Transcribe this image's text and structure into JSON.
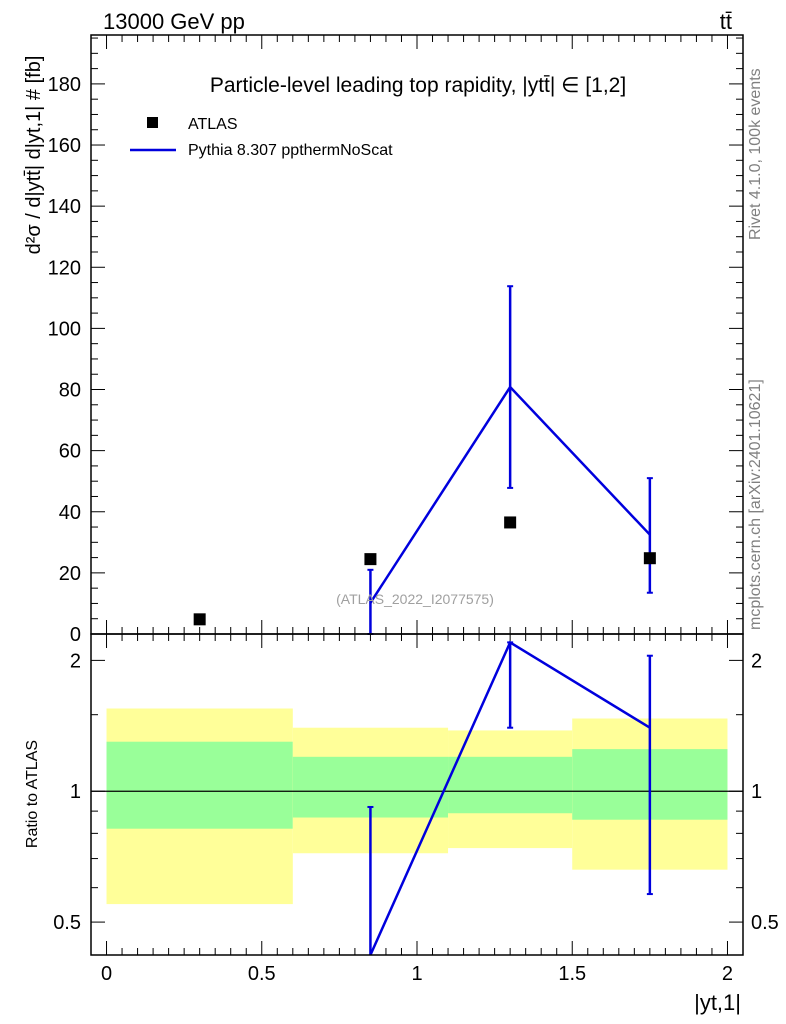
{
  "header": {
    "energy_label": "13000 GeV pp",
    "process_label": "tt̄"
  },
  "side_text": {
    "rivet": "Rivet 4.1.0,  100k events",
    "mcplots": "mcplots.cern.ch [arXiv:2401.10621]"
  },
  "watermark": "(ATLAS_2022_I2077575)",
  "colors": {
    "mc": "#0000dd",
    "band_outer": "#ffff99",
    "band_inner": "#99ff99",
    "data": "#000000"
  },
  "chart_data": [
    {
      "type": "scatter",
      "panel": "main",
      "title": "Particle-level leading top rapidity, |ytt̄| ∈ [1,2]",
      "xlabel": "|yt,1|",
      "ylabel": "d²σ / d|ytt̄| d|yt,1| # [fb]",
      "xlim": [
        -0.05,
        2.05
      ],
      "ylim": [
        0,
        196
      ],
      "yticks": [
        0,
        20,
        40,
        60,
        80,
        100,
        120,
        140,
        160,
        180
      ],
      "legend": {
        "placement": "top-left",
        "entries": [
          "ATLAS",
          "Pythia 8.307 ppthermNoScat"
        ]
      },
      "series": [
        {
          "name": "ATLAS",
          "style": "markers",
          "x": [
            0.3,
            0.85,
            1.3,
            1.75
          ],
          "y": [
            4.8,
            24.5,
            36.5,
            24.8
          ],
          "xbins": [
            [
              0,
              0.6
            ],
            [
              0.6,
              1.1
            ],
            [
              1.1,
              1.5
            ],
            [
              1.5,
              2.0
            ]
          ]
        },
        {
          "name": "Pythia 8.307 ppthermNoScat",
          "style": "line",
          "x": [
            0.85,
            1.3,
            1.75
          ],
          "y": [
            10.2,
            80.8,
            32.5
          ],
          "yerr": [
            [
              10.2,
              10.8
            ],
            [
              33.0,
              33.0
            ],
            [
              19.0,
              18.5
            ]
          ]
        }
      ]
    },
    {
      "type": "line",
      "panel": "ratio",
      "ylabel": "Ratio to ATLAS",
      "xlabel": "|yt,1|",
      "xlim": [
        -0.05,
        2.05
      ],
      "ylim": [
        0.42,
        2.3
      ],
      "yscale": "log",
      "yticks": [
        0.5,
        1,
        2
      ],
      "xticks": [
        0,
        0.5,
        1,
        1.5,
        2
      ],
      "bands": [
        {
          "xlo": 0.0,
          "xhi": 0.6,
          "outer": [
            0.55,
            1.55
          ],
          "inner": [
            0.82,
            1.3
          ]
        },
        {
          "xlo": 0.6,
          "xhi": 1.1,
          "outer": [
            0.72,
            1.4
          ],
          "inner": [
            0.87,
            1.2
          ]
        },
        {
          "xlo": 1.1,
          "xhi": 1.5,
          "outer": [
            0.74,
            1.38
          ],
          "inner": [
            0.89,
            1.2
          ]
        },
        {
          "xlo": 1.5,
          "xhi": 2.0,
          "outer": [
            0.66,
            1.47
          ],
          "inner": [
            0.86,
            1.25
          ]
        }
      ],
      "series": [
        {
          "name": "Pythia 8.307 ppthermNoScat",
          "x": [
            0.85,
            1.3,
            1.75
          ],
          "y": [
            0.42,
            2.2,
            1.4
          ],
          "yerr_bounds": [
            [
              0.42,
              0.92
            ],
            [
              1.4,
              2.2
            ],
            [
              0.58,
              2.05
            ]
          ]
        }
      ]
    }
  ]
}
